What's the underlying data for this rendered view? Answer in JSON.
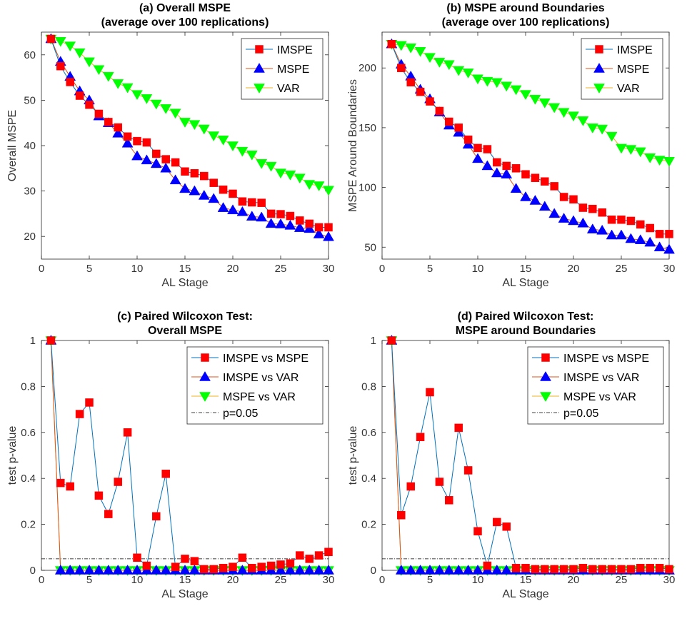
{
  "colors": {
    "series_line_a": "#0072BD",
    "series_line_b": "#D95319",
    "series_line_c": "#EDB120",
    "marker_square": "#FF0000",
    "marker_triangle_up": "#0000FF",
    "marker_triangle_down": "#00FF00",
    "reference_line": "#000000"
  },
  "chart_data": [
    {
      "type": "line",
      "title": "(a) Overall MSPE",
      "subtitle": "(average over 100 replications)",
      "xlabel": "AL Stage",
      "ylabel": "Overall MSPE",
      "xlim": [
        0,
        30
      ],
      "ylim": [
        15,
        65
      ],
      "xticks": [
        0,
        5,
        10,
        15,
        20,
        25,
        30
      ],
      "yticks": [
        20,
        30,
        40,
        50,
        60
      ],
      "grid": false,
      "legend_position": "top-right",
      "x": [
        1,
        2,
        3,
        4,
        5,
        6,
        7,
        8,
        9,
        10,
        11,
        12,
        13,
        14,
        15,
        16,
        17,
        18,
        19,
        20,
        21,
        22,
        23,
        24,
        25,
        26,
        27,
        28,
        29,
        30
      ],
      "series": [
        {
          "name": "IMSPE",
          "marker": "square",
          "values": [
            63.5,
            57.5,
            54,
            51,
            49,
            47,
            45.2,
            44,
            42,
            41,
            40.7,
            38.2,
            37,
            36.3,
            34.3,
            33.9,
            33.3,
            31.8,
            30.3,
            29.4,
            27.7,
            27.5,
            27.4,
            25,
            24.9,
            24.5,
            23.5,
            22.8,
            22,
            22
          ]
        },
        {
          "name": "MSPE",
          "marker": "triangle-up",
          "values": [
            63.5,
            58.5,
            55.2,
            52,
            50,
            46.5,
            45,
            42.7,
            40.5,
            37.7,
            36.8,
            36,
            35,
            32.4,
            30.5,
            30,
            29,
            28.3,
            26.3,
            25.8,
            25.4,
            24.4,
            24.2,
            22.8,
            22.7,
            22.4,
            21.9,
            21.7,
            20.5,
            19.9
          ]
        },
        {
          "name": "VAR",
          "marker": "triangle-down",
          "values": [
            63.5,
            63,
            62,
            60.5,
            58.5,
            56.8,
            55.3,
            53.7,
            52.8,
            51.3,
            50.4,
            49.2,
            48.2,
            47.2,
            45.2,
            44.7,
            43.7,
            42.2,
            41.3,
            40,
            38.8,
            38,
            36.1,
            35.5,
            34,
            33.6,
            32.9,
            31.5,
            31.2,
            30.2
          ]
        }
      ]
    },
    {
      "type": "line",
      "title": "(b) MSPE around Boundaries",
      "subtitle": "(average over 100 replications)",
      "xlabel": "AL Stage",
      "ylabel": "MSPE Around Boundaries",
      "xlim": [
        0,
        30
      ],
      "ylim": [
        40,
        230
      ],
      "xticks": [
        0,
        5,
        10,
        15,
        20,
        25,
        30
      ],
      "yticks": [
        50,
        100,
        150,
        200
      ],
      "grid": false,
      "legend_position": "top-right",
      "x": [
        1,
        2,
        3,
        4,
        5,
        6,
        7,
        8,
        9,
        10,
        11,
        12,
        13,
        14,
        15,
        16,
        17,
        18,
        19,
        20,
        21,
        22,
        23,
        24,
        25,
        26,
        27,
        28,
        29,
        30
      ],
      "series": [
        {
          "name": "IMSPE",
          "marker": "square",
          "values": [
            220,
            200,
            188,
            180,
            172,
            164,
            155,
            150,
            140,
            133,
            132,
            121,
            118,
            116,
            111,
            108,
            105,
            101,
            92,
            90,
            83,
            82,
            79,
            73,
            73,
            72,
            69,
            66,
            61,
            61
          ]
        },
        {
          "name": "MSPE",
          "marker": "triangle-up",
          "values": [
            220,
            203,
            193,
            182,
            174,
            163,
            152,
            146,
            136,
            124,
            118,
            112,
            111,
            99,
            92,
            89,
            84,
            78,
            74,
            72,
            70,
            65,
            64,
            60,
            60,
            57,
            56,
            54,
            50,
            48
          ]
        },
        {
          "name": "VAR",
          "marker": "triangle-down",
          "values": [
            220,
            219,
            217,
            214,
            209,
            205,
            203,
            198,
            196,
            191,
            189,
            188,
            185,
            182,
            178,
            174,
            171,
            167,
            163,
            160,
            156,
            150,
            149,
            143,
            133,
            132,
            130,
            125,
            123,
            122
          ]
        }
      ]
    },
    {
      "type": "line",
      "title": "(c) Paired Wilcoxon Test:",
      "subtitle": "Overall MSPE",
      "xlabel": "AL Stage",
      "ylabel": "test p-value",
      "xlim": [
        0,
        30
      ],
      "ylim": [
        0,
        1
      ],
      "xticks": [
        0,
        5,
        10,
        15,
        20,
        25,
        30
      ],
      "yticks": [
        0,
        0.2,
        0.4,
        0.6,
        0.8,
        1
      ],
      "grid": false,
      "legend_position": "top-right",
      "reference_line": {
        "name": "p=0.05",
        "value": 0.05
      },
      "x": [
        1,
        2,
        3,
        4,
        5,
        6,
        7,
        8,
        9,
        10,
        11,
        12,
        13,
        14,
        15,
        16,
        17,
        18,
        19,
        20,
        21,
        22,
        23,
        24,
        25,
        26,
        27,
        28,
        29,
        30
      ],
      "series": [
        {
          "name": "IMSPE vs MSPE",
          "marker": "square",
          "values": [
            1,
            0.38,
            0.365,
            0.68,
            0.73,
            0.325,
            0.245,
            0.385,
            0.6,
            0.055,
            0.02,
            0.235,
            0.42,
            0.015,
            0.05,
            0.04,
            0.005,
            0.005,
            0.01,
            0.015,
            0.055,
            0.01,
            0.015,
            0.02,
            0.025,
            0.03,
            0.065,
            0.05,
            0.065,
            0.08
          ]
        },
        {
          "name": "IMSPE vs VAR",
          "marker": "triangle-up",
          "values": [
            1,
            0,
            0,
            0,
            0,
            0,
            0,
            0,
            0,
            0,
            0,
            0,
            0,
            0,
            0,
            0,
            0,
            0,
            0,
            0,
            0,
            0,
            0,
            0,
            0,
            0,
            0,
            0,
            0,
            0
          ]
        },
        {
          "name": "MSPE vs VAR",
          "marker": "triangle-down",
          "values": [
            1,
            0,
            0,
            0,
            0,
            0,
            0,
            0,
            0,
            0,
            0,
            0,
            0,
            0,
            0,
            0,
            0,
            0,
            0,
            0,
            0,
            0,
            0,
            0,
            0,
            0,
            0,
            0,
            0,
            0
          ]
        }
      ]
    },
    {
      "type": "line",
      "title": "(d) Paired Wilcoxon Test:",
      "subtitle": "MSPE around Boundaries",
      "xlabel": "AL Stage",
      "ylabel": "test p-value",
      "xlim": [
        0,
        30
      ],
      "ylim": [
        0,
        1
      ],
      "xticks": [
        0,
        5,
        10,
        15,
        20,
        25,
        30
      ],
      "yticks": [
        0,
        0.2,
        0.4,
        0.6,
        0.8,
        1
      ],
      "grid": false,
      "legend_position": "top-right",
      "reference_line": {
        "name": "p=0.05",
        "value": 0.05
      },
      "x": [
        1,
        2,
        3,
        4,
        5,
        6,
        7,
        8,
        9,
        10,
        11,
        12,
        13,
        14,
        15,
        16,
        17,
        18,
        19,
        20,
        21,
        22,
        23,
        24,
        25,
        26,
        27,
        28,
        29,
        30
      ],
      "series": [
        {
          "name": "IMSPE vs MSPE",
          "marker": "square",
          "values": [
            1,
            0.24,
            0.365,
            0.58,
            0.775,
            0.385,
            0.305,
            0.62,
            0.435,
            0.17,
            0.02,
            0.21,
            0.19,
            0.01,
            0.01,
            0.005,
            0.005,
            0.005,
            0.005,
            0.005,
            0.01,
            0.005,
            0.005,
            0.005,
            0.005,
            0.005,
            0.01,
            0.01,
            0.01,
            0.005
          ]
        },
        {
          "name": "IMSPE vs VAR",
          "marker": "triangle-up",
          "values": [
            1,
            0,
            0,
            0,
            0,
            0,
            0,
            0,
            0,
            0,
            0,
            0,
            0,
            0,
            0,
            0,
            0,
            0,
            0,
            0,
            0,
            0,
            0,
            0,
            0,
            0,
            0,
            0,
            0,
            0
          ]
        },
        {
          "name": "MSPE vs VAR",
          "marker": "triangle-down",
          "values": [
            1,
            0,
            0,
            0,
            0,
            0,
            0,
            0,
            0,
            0,
            0,
            0,
            0,
            0,
            0,
            0,
            0,
            0,
            0,
            0,
            0,
            0,
            0,
            0,
            0,
            0,
            0,
            0,
            0,
            0
          ]
        }
      ]
    }
  ]
}
